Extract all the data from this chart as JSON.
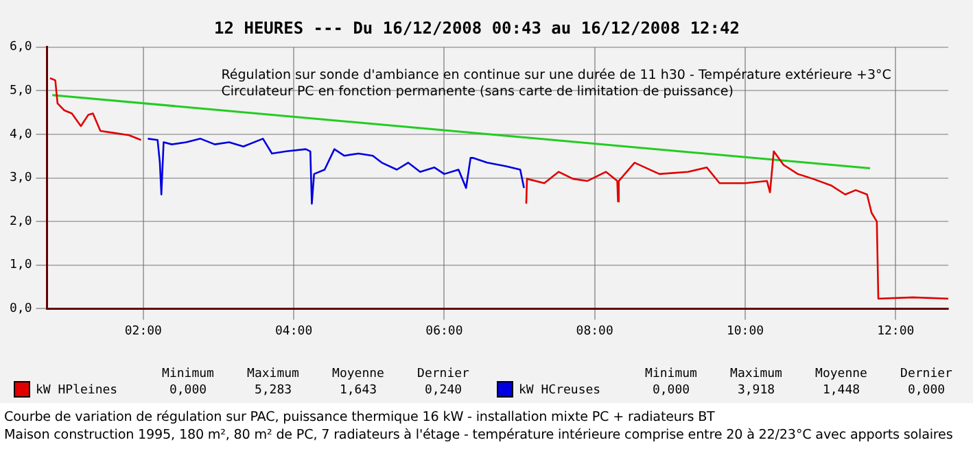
{
  "chart_data": {
    "type": "line",
    "title": "12 HEURES --- Du 16/12/2008 00:43 au 16/12/2008 12:42",
    "annotations": [
      "Régulation sur sonde d'ambiance en continue sur une durée de 11 h30 - Température extérieure +3°C",
      "Circulateur PC en fonction permanente (sans carte de limitation de puissance)",
      "Courbe de variation de régulation sur PAC, puissance thermique 16 kW - installation mixte PC + radiateurs BT",
      "Maison construction 1995, 180 m², 80 m² de PC, 7 radiateurs à l'étage - température intérieure comprise entre 20 à 22/23°C avec apports solaires",
      "Minimum",
      "Maximum",
      "Moyenne",
      "Dernier",
      "0,000",
      "5,283",
      "1,643",
      "0,240",
      "0,000",
      "3,918",
      "1,448",
      "0,000"
    ],
    "series": [
      {
        "name": "kW HPleines",
        "color": "#e00000",
        "x": [
          0.76,
          0.83,
          0.86,
          0.95,
          1.05,
          1.17,
          1.27,
          1.33,
          1.43,
          1.62,
          1.81,
          1.97,
          2.06,
          7.09,
          7.1,
          7.33,
          7.52,
          7.71,
          7.9,
          8.15,
          8.3,
          8.31,
          8.32,
          8.53,
          8.86,
          9.24,
          9.49,
          9.66,
          10.0,
          10.29,
          10.33,
          10.38,
          10.51,
          10.7,
          10.9,
          11.14,
          11.33,
          11.47,
          11.62,
          11.68,
          11.75,
          11.77,
          12.23,
          12.7
        ],
        "values": [
          5.29,
          5.24,
          4.71,
          4.55,
          4.48,
          4.19,
          4.45,
          4.48,
          4.08,
          4.03,
          3.98,
          3.87,
          null,
          2.41,
          2.98,
          2.88,
          3.14,
          2.98,
          2.93,
          3.14,
          2.93,
          2.46,
          2.93,
          3.35,
          3.09,
          3.14,
          3.24,
          2.88,
          2.88,
          2.93,
          2.67,
          3.61,
          3.3,
          3.09,
          2.98,
          2.83,
          2.62,
          2.72,
          2.62,
          2.2,
          2.0,
          0.23,
          0.26,
          0.23
        ]
      },
      {
        "name": "kW HCreuses",
        "color": "#0000e0",
        "x": [
          2.06,
          2.19,
          2.22,
          2.24,
          2.27,
          2.38,
          2.57,
          2.76,
          2.95,
          3.14,
          3.33,
          3.59,
          3.71,
          3.9,
          4.16,
          4.22,
          4.24,
          4.27,
          4.41,
          4.54,
          4.67,
          4.86,
          5.05,
          5.17,
          5.37,
          5.52,
          5.68,
          5.87,
          6.0,
          6.19,
          6.29,
          6.35,
          6.38,
          6.57,
          6.82,
          7.01,
          7.06
        ],
        "values": [
          3.9,
          3.87,
          3.35,
          2.62,
          3.82,
          3.77,
          3.82,
          3.9,
          3.77,
          3.82,
          3.72,
          3.9,
          3.56,
          3.61,
          3.66,
          3.61,
          2.41,
          3.09,
          3.19,
          3.66,
          3.51,
          3.56,
          3.51,
          3.35,
          3.19,
          3.35,
          3.14,
          3.24,
          3.09,
          3.19,
          2.77,
          3.46,
          3.46,
          3.35,
          3.27,
          3.19,
          2.77
        ]
      },
      {
        "type": "line",
        "color": "#22cc22",
        "x": [
          0.79,
          11.66
        ],
        "values": [
          4.9,
          3.22
        ]
      }
    ],
    "xlim": [
      0.72,
      12.7
    ],
    "xticks": [
      {
        "value": 2,
        "label": "02:00"
      },
      {
        "value": 4,
        "label": "04:00"
      },
      {
        "value": 6,
        "label": "06:00"
      },
      {
        "value": 8,
        "label": "08:00"
      },
      {
        "value": 10,
        "label": "10:00"
      },
      {
        "value": 12,
        "label": "12:00"
      }
    ],
    "ylim": [
      0,
      6
    ],
    "yticks": [
      {
        "value": 0,
        "label": "0,0"
      },
      {
        "value": 1,
        "label": "1,0"
      },
      {
        "value": 2,
        "label": "2,0"
      },
      {
        "value": 3,
        "label": "3,0"
      },
      {
        "value": 4,
        "label": "4,0"
      },
      {
        "value": 5,
        "label": "5,0"
      },
      {
        "value": 6,
        "label": "6,0"
      }
    ],
    "grid": true,
    "legend": "bottom",
    "marker": "none",
    "line_style": "solid"
  }
}
